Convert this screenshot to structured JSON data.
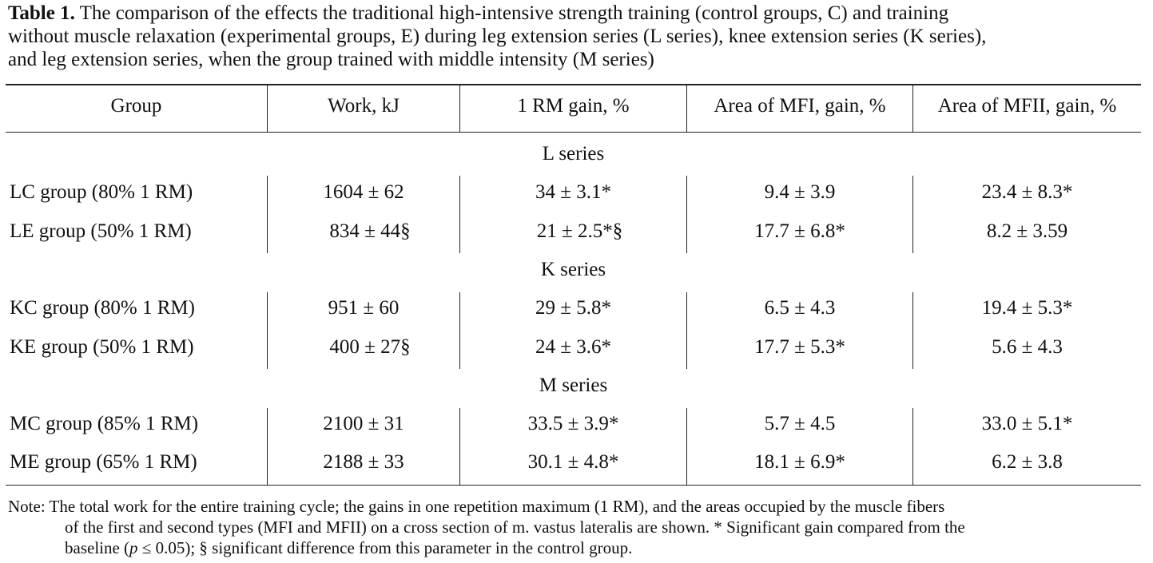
{
  "caption": {
    "label": "Table 1.",
    "line1": "The comparison of the effects the traditional high-intensive strength training (control groups, C) and training",
    "line2": "without muscle relaxation (experimental groups, E) during leg extension series (L series), knee extension series (K series),",
    "line3": "and leg extension series, when the group trained with middle intensity (M series)"
  },
  "table": {
    "headers": [
      "Group",
      "Work, kJ",
      "1 RM gain, %",
      "Area of MFI, gain, %",
      "Area of MFII, gain, %"
    ],
    "sections": [
      {
        "title": "L series",
        "rows": [
          [
            "LC group (80% 1 RM)",
            "1604 ± 62",
            "34 ± 3.1*",
            "9.4 ± 3.9",
            "23.4 ± 8.3*"
          ],
          [
            "LE group (50% 1 RM)",
            "834 ± 44§",
            "21 ± 2.5*§",
            "17.7 ± 6.8*",
            "8.2 ± 3.59"
          ]
        ]
      },
      {
        "title": "K series",
        "rows": [
          [
            "KC group (80% 1 RM)",
            "951 ± 60",
            "29 ± 5.8*",
            "6.5 ± 4.3",
            "19.4 ± 5.3*"
          ],
          [
            "KE group (50% 1 RM)",
            "400 ± 27§",
            "24 ± 3.6*",
            "17.7 ± 5.3*",
            "5.6 ± 4.3"
          ]
        ]
      },
      {
        "title": "M series",
        "rows": [
          [
            "MC group (85% 1 RM)",
            "2100 ± 31",
            "33.5 ± 3.9*",
            "5.7 ± 4.5",
            "33.0 ± 5.1*"
          ],
          [
            "ME group (65% 1 RM)",
            "2188 ± 33",
            "30.1 ± 4.8*",
            "18.1 ± 6.9*",
            "6.2 ± 3.8"
          ]
        ]
      }
    ]
  },
  "note": {
    "line1": "Note:  The total work for the entire training cycle; the gains in one repetition maximum (1 RM), and the areas occupied by the muscle fibers",
    "line2": "of the first and second types (MFI and MFII) on a cross section of m. vastus lateralis are shown. * Significant gain compared from the",
    "line3_pre": "baseline (",
    "line3_p": "p",
    "line3_post": " ≤ 0.05); § significant difference from this parameter in the control group."
  }
}
